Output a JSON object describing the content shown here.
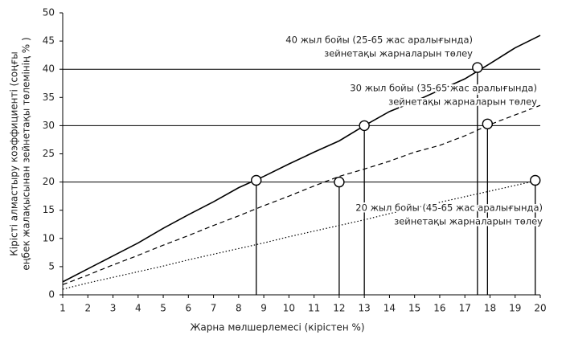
{
  "chart_data": {
    "type": "line",
    "x": [
      1,
      2,
      3,
      4,
      5,
      6,
      7,
      8,
      9,
      10,
      11,
      12,
      13,
      14,
      15,
      16,
      17,
      18,
      19,
      20
    ],
    "series": [
      {
        "color": "#000000",
        "dash": "solid",
        "values": [
          2.3,
          4.6,
          6.9,
          9.2,
          11.8,
          14.2,
          16.5,
          19,
          21,
          23.2,
          25.3,
          27.3,
          30,
          32.5,
          34.3,
          36.3,
          38.3,
          41,
          43.8,
          46
        ]
      },
      {
        "color": "#000000",
        "dash": "dashed",
        "values": [
          1.8,
          3.5,
          5.3,
          7,
          8.8,
          10.5,
          12.3,
          14,
          15.8,
          17.5,
          19.3,
          21,
          22.3,
          23.7,
          25.3,
          26.5,
          28.2,
          30.2,
          31.9,
          33.6
        ]
      },
      {
        "color": "#000000",
        "dash": "dotted",
        "values": [
          1,
          2.1,
          3.1,
          4.1,
          5.1,
          6.2,
          7.2,
          8.2,
          9.2,
          10.3,
          11.3,
          12.3,
          13.3,
          14.4,
          15.4,
          16.4,
          17.4,
          18.4,
          19.4,
          20.4
        ]
      }
    ],
    "markers": {
      "x": [
        8.7,
        12,
        13,
        17.5,
        17.9,
        19.8
      ],
      "y": [
        20.3,
        20,
        30,
        40.3,
        30.3,
        20.3
      ]
    },
    "reference_lines": [
      20,
      30,
      40
    ],
    "xlim": [
      1,
      20
    ],
    "xticks": [
      1,
      2,
      3,
      4,
      5,
      6,
      7,
      8,
      9,
      10,
      11,
      12,
      13,
      14,
      15,
      16,
      17,
      18,
      19,
      20
    ],
    "ylim": [
      0,
      50
    ],
    "yticks": [
      0,
      5,
      10,
      15,
      20,
      25,
      30,
      35,
      40,
      45,
      50
    ],
    "xlabel": "Жарна мөлшерлемесі (кірістен %)",
    "ylabel": [
      "Кірісті алмастыру коэффициенті (соңғы",
      "еңбек жалақысынан зейнетақы төлемінің % )"
    ],
    "annotations": [
      [
        "40 жыл бойы (25-65 жас аралығында)",
        "зейнетақы жарналарын төлеу"
      ],
      [
        "30 жыл бойы (35-65 жас аралығында)",
        "зейнетақы жарналарын төлеу"
      ],
      [
        "20 жыл бойы (45-65 жас аралығында)",
        "зейнетақы жарналарын төлеу"
      ]
    ]
  }
}
